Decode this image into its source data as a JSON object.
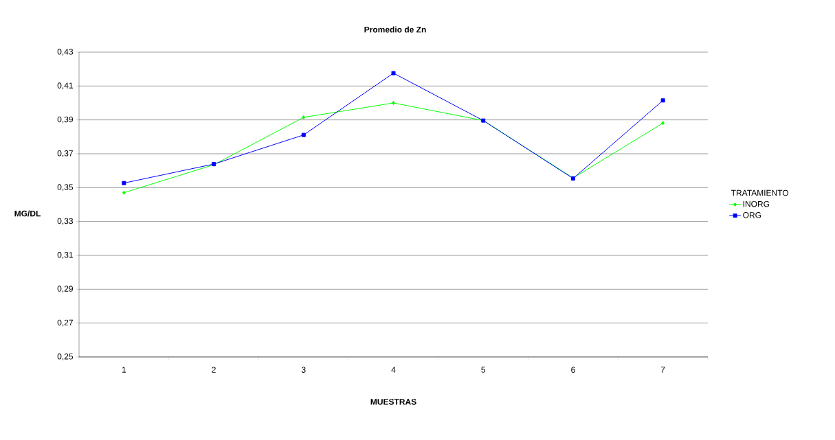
{
  "chart_data": {
    "type": "line",
    "title": "Promedio de Zn",
    "xlabel": "MUESTRAS",
    "ylabel": "MG/DL",
    "legend_title": "TRATAMIENTO",
    "categories": [
      "1",
      "2",
      "3",
      "4",
      "5",
      "6",
      "7"
    ],
    "series": [
      {
        "name": "INORG",
        "color": "#00ff00",
        "marker": "diamond",
        "values": [
          0.347,
          0.3635,
          0.3915,
          0.4,
          0.3896,
          0.3557,
          0.3881
        ]
      },
      {
        "name": "ORG",
        "color": "#0000ff",
        "marker": "square",
        "values": [
          0.3527,
          0.3639,
          0.3811,
          0.4176,
          0.3896,
          0.3554,
          0.4015
        ]
      }
    ],
    "ylim": [
      0.25,
      0.43
    ],
    "yticks": [
      {
        "value": 0.25,
        "label": "0,25"
      },
      {
        "value": 0.27,
        "label": "0,27"
      },
      {
        "value": 0.29,
        "label": "0,29"
      },
      {
        "value": 0.31,
        "label": "0,31"
      },
      {
        "value": 0.33,
        "label": "0,33"
      },
      {
        "value": 0.35,
        "label": "0,35"
      },
      {
        "value": 0.37,
        "label": "0,37"
      },
      {
        "value": 0.39,
        "label": "0,39"
      },
      {
        "value": 0.41,
        "label": "0,41"
      },
      {
        "value": 0.43,
        "label": "0,43"
      }
    ],
    "grid": "y",
    "legend": "right",
    "line_style": "solid"
  }
}
